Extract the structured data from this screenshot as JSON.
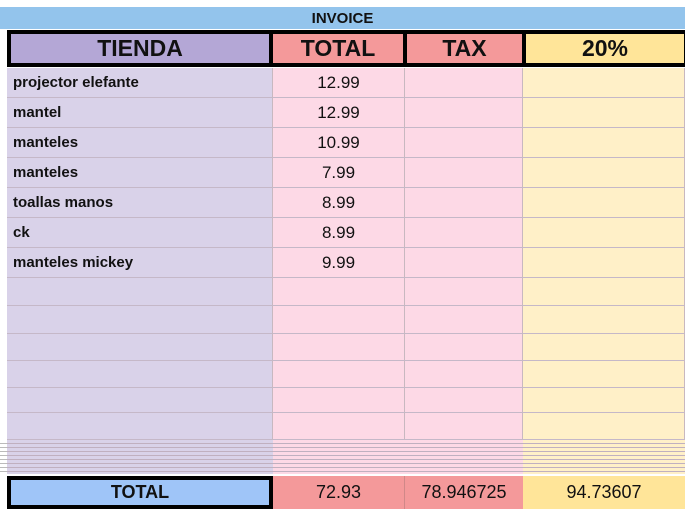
{
  "title": "INVOICE",
  "headers": [
    "TIENDA",
    "TOTAL",
    "TAX",
    "20%"
  ],
  "rows": [
    {
      "tienda": "projector elefante",
      "total": "12.99"
    },
    {
      "tienda": "mantel",
      "total": "12.99"
    },
    {
      "tienda": "manteles",
      "total": "10.99"
    },
    {
      "tienda": "manteles",
      "total": "7.99"
    },
    {
      "tienda": "toallas manos",
      "total": "8.99"
    },
    {
      "tienda": "ck",
      "total": "8.99"
    },
    {
      "tienda": "manteles mickey",
      "total": "9.99"
    }
  ],
  "totals": {
    "label": "TOTAL",
    "total": "72.93",
    "tax": "78.946725",
    "pct": "94.73607"
  },
  "colors": {
    "invoice": "#93c4ec",
    "tienda_header": "#b4a7d6",
    "tienda_body": "#d9d2e9",
    "total_header": "#f4999a",
    "total_body": "#fdd9e6",
    "pct_header": "#ffe599",
    "pct_body": "#fff0c8",
    "total_label": "#9fc5f8"
  }
}
